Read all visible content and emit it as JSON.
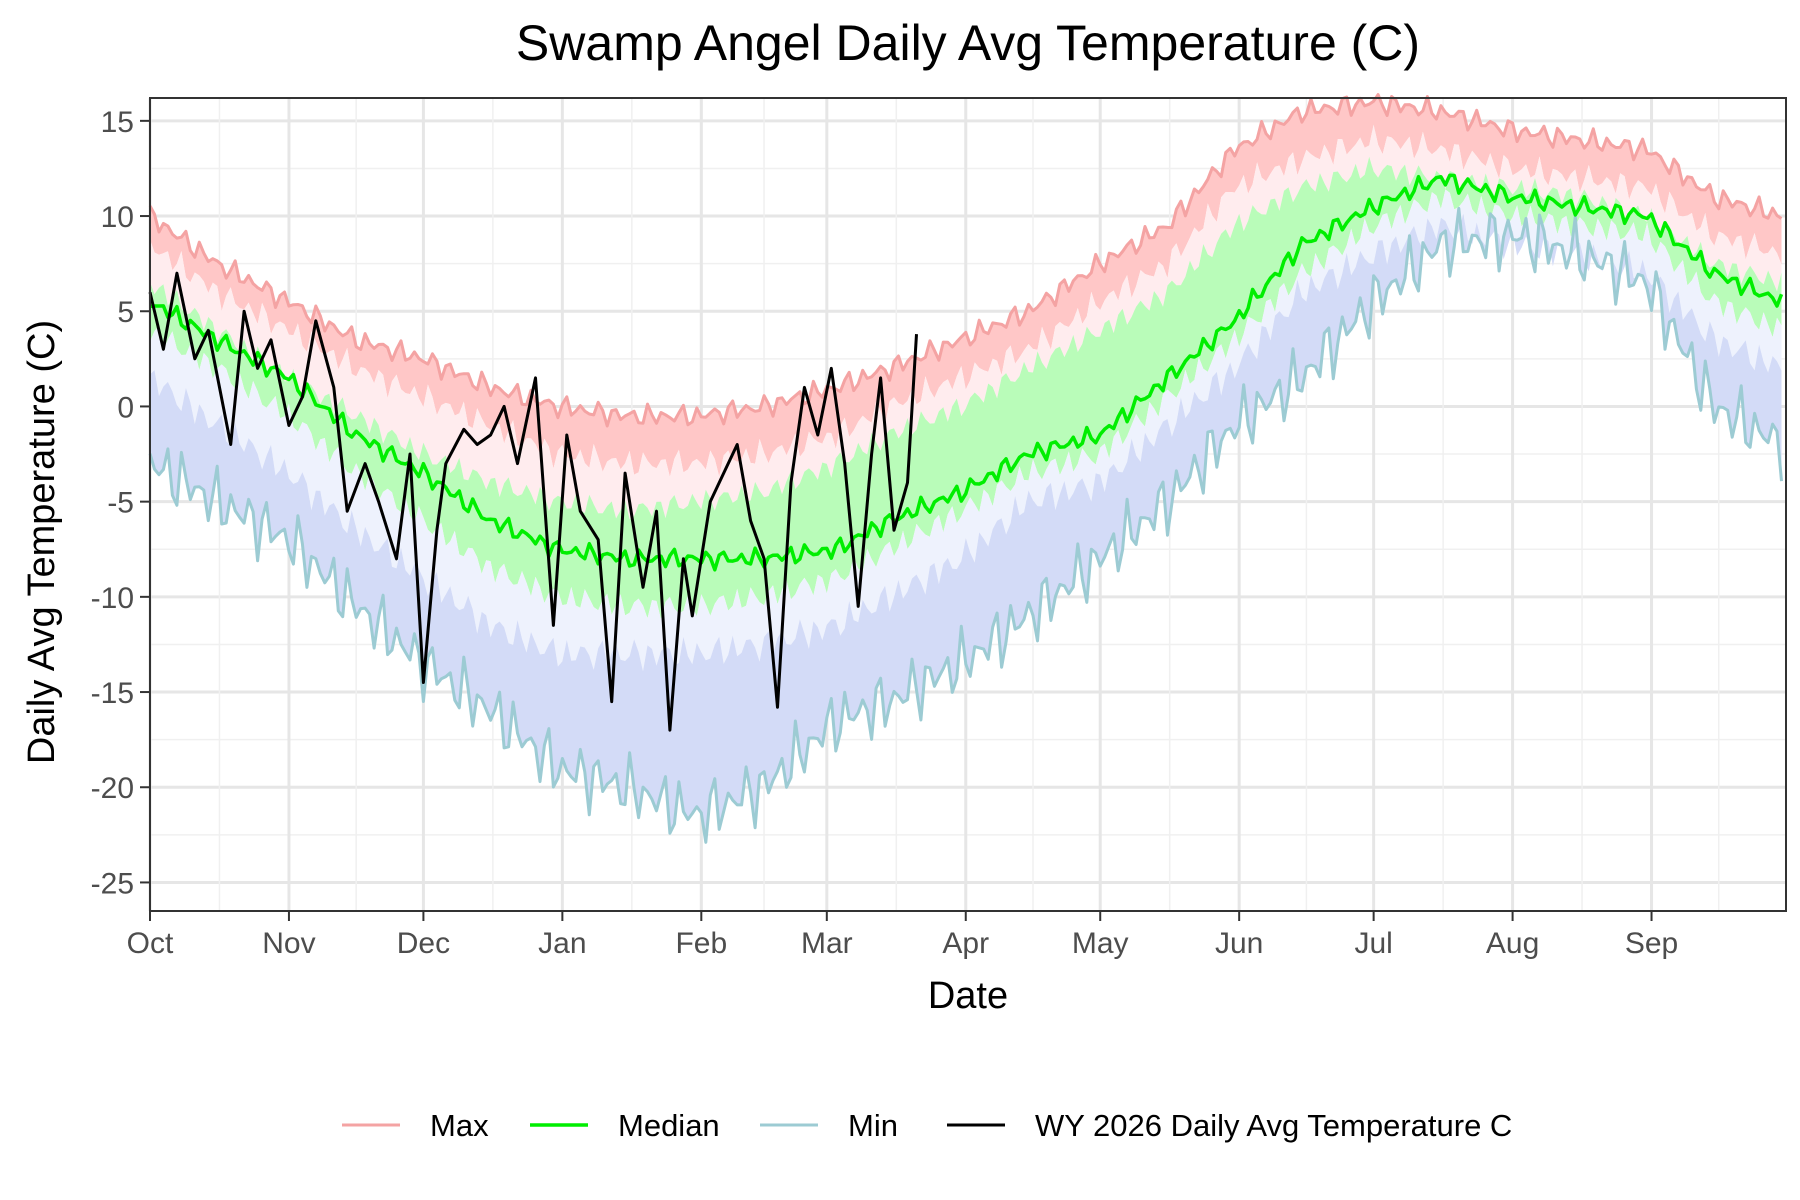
{
  "chart_data": {
    "type": "line",
    "title": "Swamp Angel Daily Avg Temperature (C)",
    "xlabel": "Date",
    "ylabel": "Daily Avg Temperature (C)",
    "xlim": [
      "Oct 1",
      "Sep 30"
    ],
    "ylim": [
      -26.5,
      16.2
    ],
    "y_ticks": [
      15,
      10,
      5,
      0,
      -5,
      -10,
      -15,
      -20,
      -25
    ],
    "y_tick_labels": [
      "15",
      "10",
      "5",
      "0",
      "-5",
      "-10",
      "-15",
      "-20",
      "-25"
    ],
    "x_tick_labels": [
      "Oct",
      "Nov",
      "Dec",
      "Jan",
      "Feb",
      "Mar",
      "Apr",
      "May",
      "Jun",
      "Jul",
      "Aug",
      "Sep"
    ],
    "grid": true,
    "legend_position": "bottom",
    "colors": {
      "max": "#f4a3a3",
      "median": "#00ee00",
      "min": "#9ccbd3",
      "wy2026": "#000000",
      "band_max_outer": "#ffc7c7",
      "band_max_inner": "#ffecee",
      "band_med": "#b9fcb9",
      "band_min_inner": "#eef2fd",
      "band_min_outer": "#d3dbf7"
    },
    "legend": [
      {
        "key": "max",
        "label": "Max"
      },
      {
        "key": "median",
        "label": "Median"
      },
      {
        "key": "min",
        "label": "Min"
      },
      {
        "key": "wy2026",
        "label": "WY 2026 Daily Avg Temperature C"
      }
    ],
    "stats_days": [
      0,
      15,
      31,
      46,
      61,
      76,
      91,
      106,
      122,
      137,
      153,
      165,
      181,
      196,
      212,
      227,
      242,
      257,
      273,
      288,
      304,
      319,
      334,
      349,
      364
    ],
    "series": [
      {
        "key": "max",
        "name": "Max",
        "values": [
          10.0,
          7.5,
          5.5,
          3.5,
          2.5,
          1.0,
          0.0,
          -0.5,
          -0.5,
          0.0,
          1.0,
          2.0,
          3.5,
          5.0,
          7.5,
          9.5,
          13.5,
          15.5,
          16.0,
          15.5,
          14.5,
          14.0,
          13.5,
          11.0,
          10.0
        ]
      },
      {
        "key": "q75",
        "values": [
          8.5,
          6.0,
          4.0,
          2.0,
          0.5,
          -1.0,
          -2.5,
          -3.0,
          -3.0,
          -2.5,
          -1.5,
          0.0,
          1.5,
          3.0,
          5.5,
          7.5,
          11.5,
          13.0,
          14.0,
          13.5,
          12.5,
          12.0,
          11.5,
          9.0,
          8.0
        ]
      },
      {
        "key": "q60",
        "values": [
          6.5,
          4.0,
          1.5,
          -0.5,
          -2.5,
          -4.0,
          -5.0,
          -5.5,
          -5.0,
          -4.5,
          -3.0,
          -1.5,
          0.0,
          2.0,
          4.0,
          6.0,
          9.5,
          11.5,
          12.5,
          12.0,
          11.5,
          11.0,
          10.0,
          7.5,
          6.5
        ]
      },
      {
        "key": "median",
        "name": "Median",
        "values": [
          5.5,
          3.5,
          1.5,
          -1.5,
          -3.5,
          -6.0,
          -7.5,
          -8.0,
          -8.0,
          -8.0,
          -7.5,
          -6.0,
          -4.5,
          -2.5,
          -1.5,
          1.5,
          4.5,
          8.5,
          10.5,
          12.0,
          11.0,
          10.5,
          10.0,
          7.0,
          5.5
        ]
      },
      {
        "key": "q40",
        "values": [
          4.0,
          2.0,
          -0.5,
          -3.5,
          -6.0,
          -8.5,
          -10.0,
          -10.5,
          -10.5,
          -10.0,
          -9.0,
          -7.5,
          -5.5,
          -3.5,
          -2.5,
          0.5,
          3.5,
          7.0,
          9.5,
          11.0,
          10.0,
          9.5,
          9.0,
          5.5,
          4.0
        ]
      },
      {
        "key": "q25",
        "values": [
          1.5,
          -1.0,
          -3.5,
          -6.5,
          -9.0,
          -11.5,
          -13.0,
          -13.0,
          -13.0,
          -12.5,
          -11.5,
          -10.0,
          -8.0,
          -5.0,
          -4.0,
          -1.0,
          2.0,
          6.0,
          8.0,
          9.5,
          8.5,
          8.0,
          7.0,
          3.5,
          2.0
        ]
      },
      {
        "key": "min",
        "name": "Min",
        "values": [
          -3.0,
          -5.0,
          -7.0,
          -10.5,
          -13.5,
          -16.0,
          -19.0,
          -20.0,
          -21.5,
          -20.0,
          -16.5,
          -15.5,
          -13.5,
          -11.0,
          -8.0,
          -5.0,
          -1.0,
          1.5,
          5.5,
          8.5,
          9.0,
          8.0,
          6.5,
          0.0,
          -2.0
        ]
      },
      {
        "key": "wy2026",
        "name": "WY 2026 Daily Avg Temperature C",
        "x": [
          0,
          3,
          6,
          10,
          13,
          18,
          21,
          24,
          27,
          31,
          34,
          37,
          41,
          44,
          48,
          51,
          55,
          58,
          61,
          64,
          66,
          70,
          73,
          76,
          79,
          82,
          86,
          90,
          93,
          96,
          100,
          103,
          106,
          110,
          113,
          116,
          119,
          121,
          125,
          128,
          131,
          134,
          137,
          140,
          143,
          146,
          149,
          152,
          155,
          158,
          161,
          163,
          166,
          169,
          171
        ],
        "values": [
          6.0,
          3.0,
          7.0,
          2.5,
          4.0,
          -2.0,
          5.0,
          2.0,
          3.5,
          -1.0,
          0.5,
          4.5,
          1.0,
          -5.5,
          -3.0,
          -5.0,
          -8.0,
          -2.5,
          -14.5,
          -6.5,
          -3.0,
          -1.2,
          -2.0,
          -1.5,
          0.0,
          -3.0,
          1.5,
          -11.5,
          -1.5,
          -5.5,
          -7.0,
          -15.5,
          -3.5,
          -9.5,
          -5.5,
          -17.0,
          -8.0,
          -11.0,
          -5.0,
          -3.5,
          -2.0,
          -6.0,
          -8.0,
          -15.8,
          -4.0,
          1.0,
          -1.5,
          2.0,
          -3.0,
          -10.5,
          -2.5,
          1.5,
          -6.5,
          -4.0,
          3.8
        ]
      }
    ]
  }
}
